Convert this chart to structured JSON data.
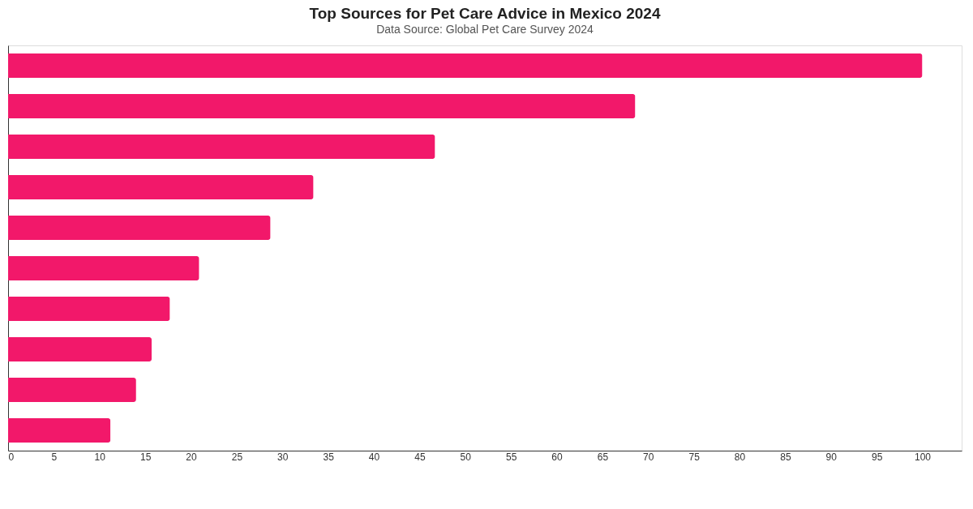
{
  "chart_data": {
    "type": "bar",
    "orientation": "horizontal",
    "title": "Top Sources for Pet Care Advice in Mexico 2024",
    "subtitle": "Data Source: Global Pet Care Survey 2024",
    "categories": [
      null,
      null,
      null,
      null,
      null,
      null,
      null,
      null,
      null,
      null
    ],
    "values": [
      100,
      68.6,
      46.7,
      33.4,
      28.7,
      20.9,
      17.7,
      15.7,
      14.0,
      11.2
    ],
    "color": "#f2186a",
    "xlim": [
      0,
      104.3
    ],
    "xticks": [
      0,
      5,
      10,
      15,
      20,
      25,
      30,
      35,
      40,
      45,
      50,
      55,
      60,
      65,
      70,
      75,
      80,
      85,
      90,
      95,
      100
    ],
    "grid": false,
    "tick_labels": "x"
  }
}
